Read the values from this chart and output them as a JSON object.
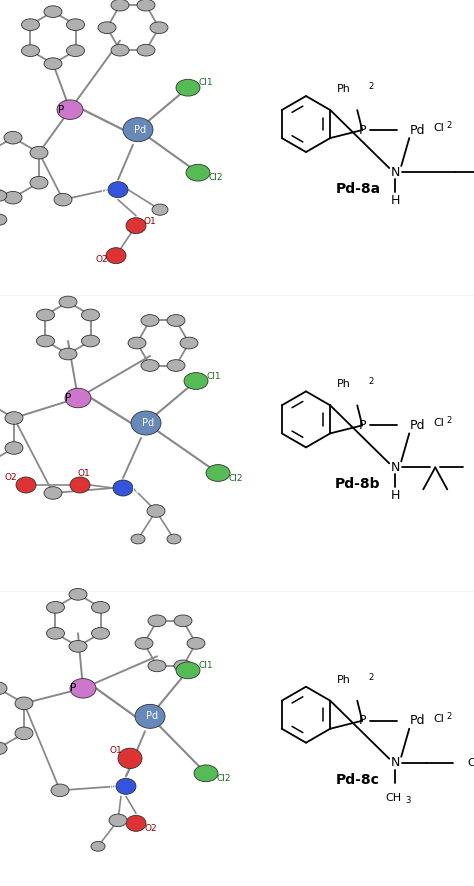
{
  "background_color": "#ffffff",
  "panels": [
    {
      "label": "Pd-8a",
      "nh": true,
      "gem_dimethyl": false,
      "n_methyl": false
    },
    {
      "label": "Pd-8b",
      "nh": true,
      "gem_dimethyl": true,
      "n_methyl": false
    },
    {
      "label": "Pd-8c",
      "nh": false,
      "gem_dimethyl": false,
      "n_methyl": true
    }
  ],
  "colors": {
    "gray": "#aaaaaa",
    "dgray": "#777777",
    "purple": "#9966bb",
    "blue_pd": "#5577bb",
    "green_cl": "#33aa33",
    "red_o": "#cc2222",
    "blue_n": "#2244cc",
    "bond": "#666666"
  }
}
